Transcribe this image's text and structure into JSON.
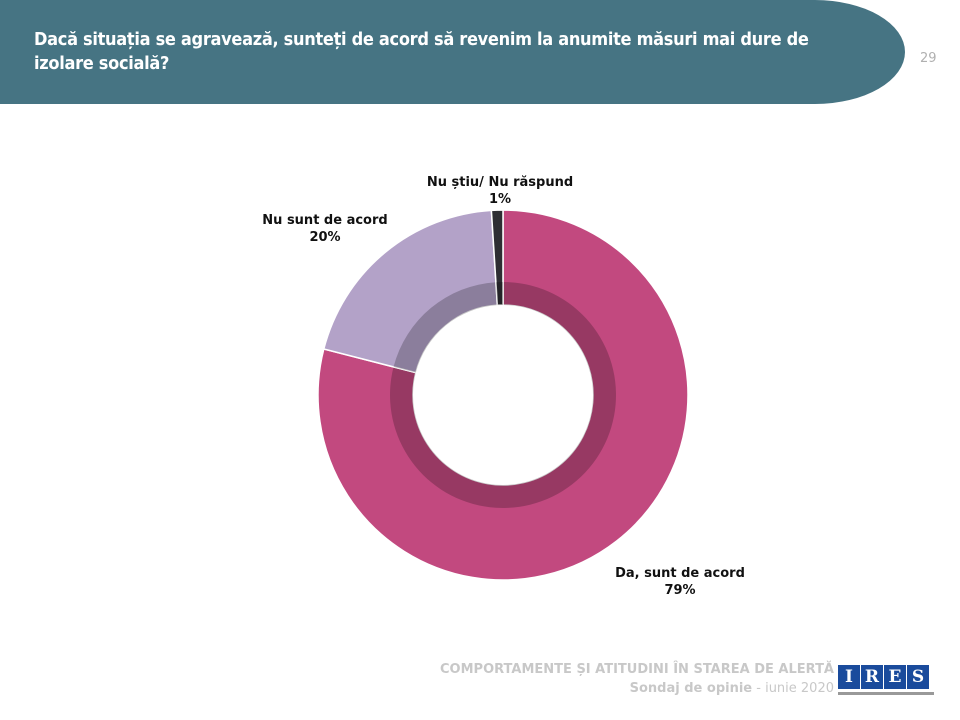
{
  "header": {
    "title": "Dacă situația se agravează, sunteți de acord să revenim la anumite măsuri mai dure de izolare socială?",
    "page_number": "29"
  },
  "chart_data": {
    "type": "pie",
    "donut": true,
    "categories": [
      "Da, sunt de acord",
      "Nu sunt de acord",
      "Nu știu/ Nu răspund"
    ],
    "values": [
      79,
      20,
      1
    ],
    "labels": [
      "79%",
      "20%",
      "1%"
    ],
    "colors": [
      "#C2497F",
      "#B3A2C8",
      "#2E2E33"
    ],
    "title": ""
  },
  "footer": {
    "line1": "COMPORTAMENTE ȘI ATITUDINI ÎN STAREA DE ALERTĂ",
    "line2_bold": "Sondaj  de opinie",
    "line2_sep": " - ",
    "line2_date": "iunie 2020"
  },
  "logo": {
    "letters": [
      "I",
      "R",
      "E",
      "S"
    ],
    "color": "#1A4B9C"
  }
}
